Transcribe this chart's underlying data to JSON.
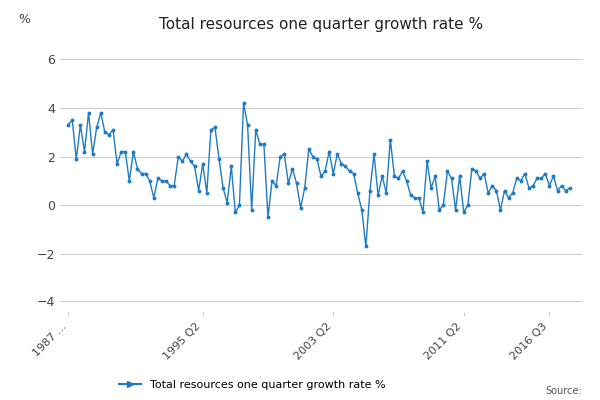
{
  "title": "Total resources one quarter growth rate %",
  "ylabel": "%",
  "line_color": "#1f7bc4",
  "background_color": "#ffffff",
  "grid_color": "#cccccc",
  "legend_label": "Total resources one quarter growth rate %",
  "source_text": "Source:",
  "xtick_labels": [
    "1987 ...",
    "1995 Q2",
    "2003 Q2",
    "2011 Q2",
    "2016 Q3"
  ],
  "xtick_positions": [
    0,
    33,
    65,
    97,
    118
  ],
  "ytick_values": [
    -4,
    -2,
    0,
    2,
    4,
    6
  ],
  "plot_ylim": [
    -2.8,
    6.8
  ],
  "values": [
    3.3,
    3.5,
    1.9,
    3.3,
    2.2,
    3.8,
    2.1,
    3.2,
    3.8,
    3.0,
    2.9,
    3.1,
    1.7,
    2.2,
    2.2,
    1.0,
    2.2,
    1.5,
    1.3,
    1.3,
    1.0,
    0.3,
    1.1,
    1.0,
    1.0,
    0.8,
    0.8,
    2.0,
    1.8,
    2.1,
    1.8,
    1.6,
    0.6,
    1.7,
    0.5,
    3.1,
    3.2,
    1.9,
    0.7,
    0.1,
    1.6,
    -0.3,
    0.0,
    4.2,
    3.3,
    -0.2,
    3.1,
    2.5,
    2.5,
    -0.5,
    1.0,
    0.8,
    2.0,
    2.1,
    0.9,
    1.5,
    0.9,
    -0.1,
    0.7,
    2.3,
    2.0,
    1.9,
    1.2,
    1.4,
    2.2,
    1.3,
    2.1,
    1.7,
    1.6,
    1.4,
    1.3,
    0.5,
    -0.2,
    -1.7,
    0.6,
    2.1,
    0.4,
    1.2,
    0.5,
    2.7,
    1.2,
    1.1,
    1.4,
    1.0,
    0.4,
    0.3,
    0.3,
    -0.3,
    1.8,
    0.7,
    1.2,
    -0.2,
    0.0,
    1.4,
    1.1,
    -0.2,
    1.2,
    -0.3,
    0.0,
    1.5,
    1.4,
    1.1,
    1.3,
    0.5,
    0.8,
    0.6,
    -0.2,
    0.6,
    0.3,
    0.5,
    1.1,
    1.0,
    1.3,
    0.7,
    0.8,
    1.1,
    1.1,
    1.3,
    0.8,
    1.2,
    0.6,
    0.8,
    0.6,
    0.7
  ]
}
